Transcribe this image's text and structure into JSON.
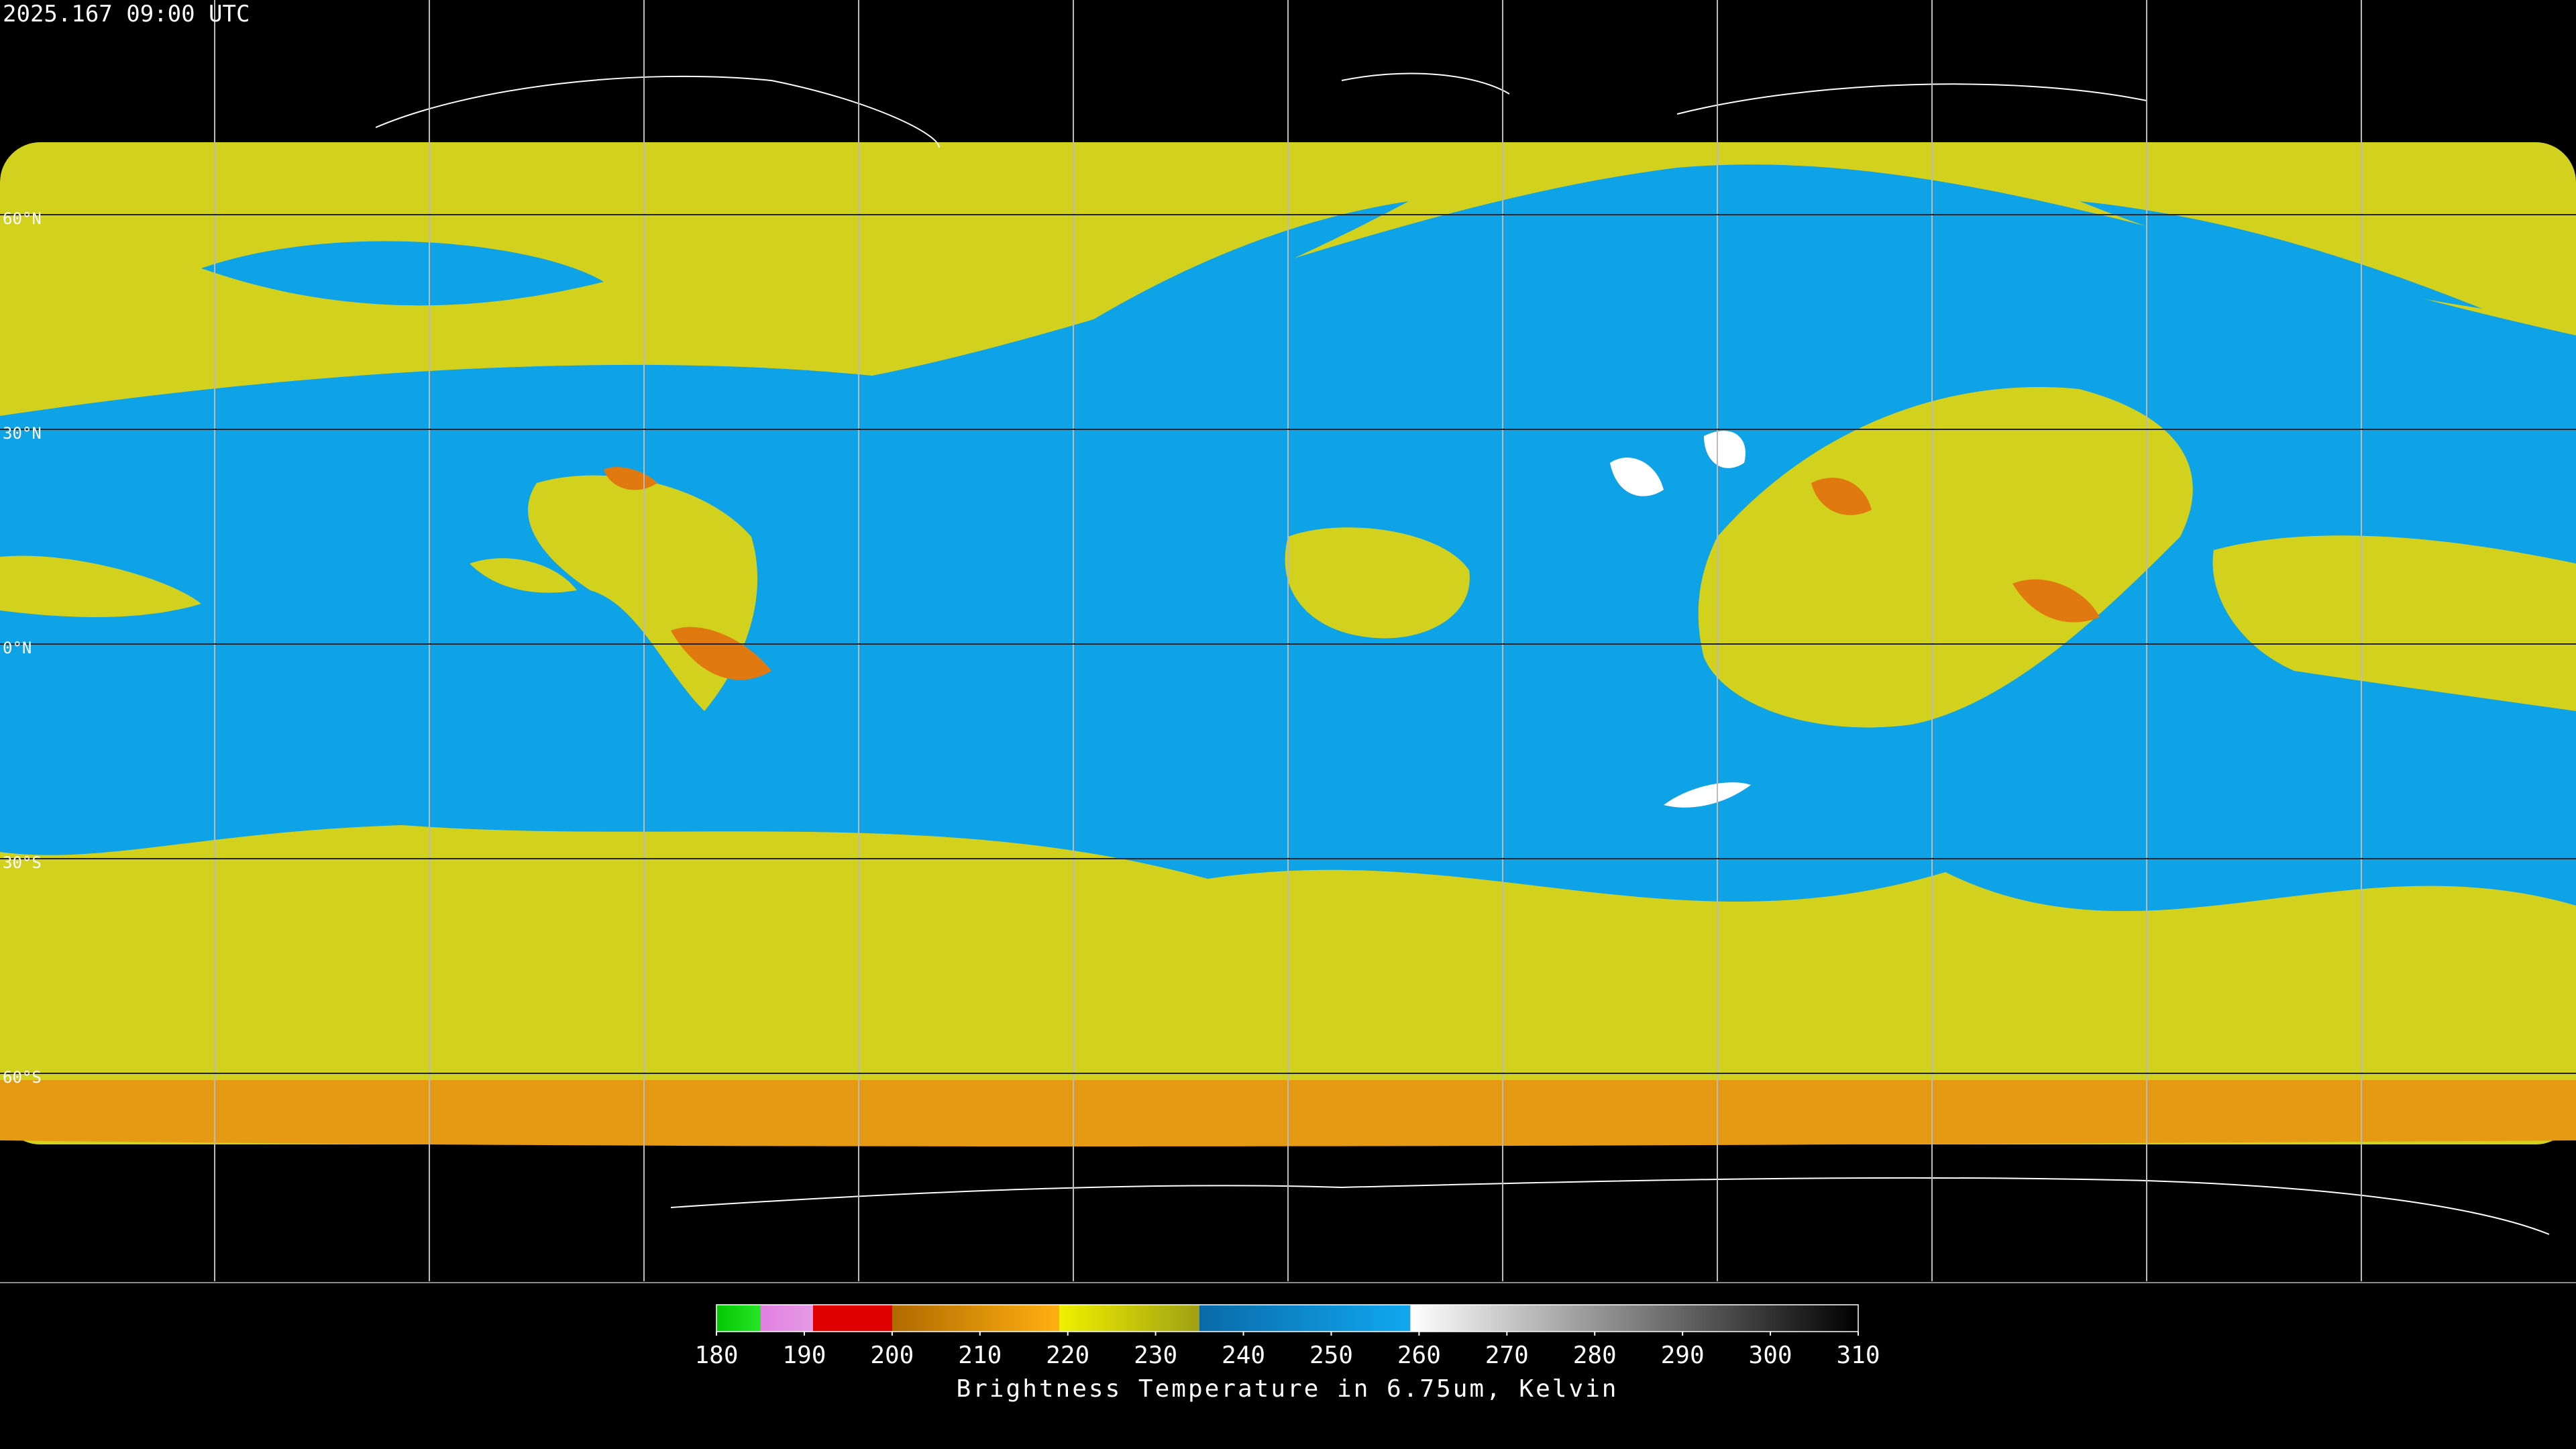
{
  "header": {
    "title": "2025.167 09:00 UTC"
  },
  "map": {
    "lat_lines": [
      {
        "value": 60,
        "label": "60°N"
      },
      {
        "value": 30,
        "label": "30°N"
      },
      {
        "value": 0,
        "label": "0°N"
      },
      {
        "value": -30,
        "label": "30°S"
      },
      {
        "value": -60,
        "label": "60°S"
      }
    ]
  },
  "colorbar": {
    "label": "Brightness Temperature in 6.75um, Kelvin",
    "range": [
      180,
      310
    ],
    "ticks": [
      180,
      190,
      200,
      210,
      220,
      230,
      240,
      250,
      260,
      270,
      280,
      290,
      300,
      310
    ],
    "segments": [
      {
        "from": 180,
        "to": 185,
        "colors": [
          "#00c800",
          "#28e428"
        ]
      },
      {
        "from": 185,
        "to": 191,
        "colors": [
          "#e080e0",
          "#e69ae6"
        ]
      },
      {
        "from": 191,
        "to": 200,
        "colors": [
          "#e00000",
          "#e00000"
        ]
      },
      {
        "from": 200,
        "to": 219,
        "colors": [
          "#b06a00",
          "#ffb010"
        ]
      },
      {
        "from": 219,
        "to": 235,
        "colors": [
          "#f0f000",
          "#a0a014"
        ]
      },
      {
        "from": 235,
        "to": 259,
        "colors": [
          "#0a6aa8",
          "#10a8f0"
        ]
      },
      {
        "from": 259,
        "to": 310,
        "colors": [
          "#ffffff",
          "#000000"
        ]
      }
    ]
  }
}
